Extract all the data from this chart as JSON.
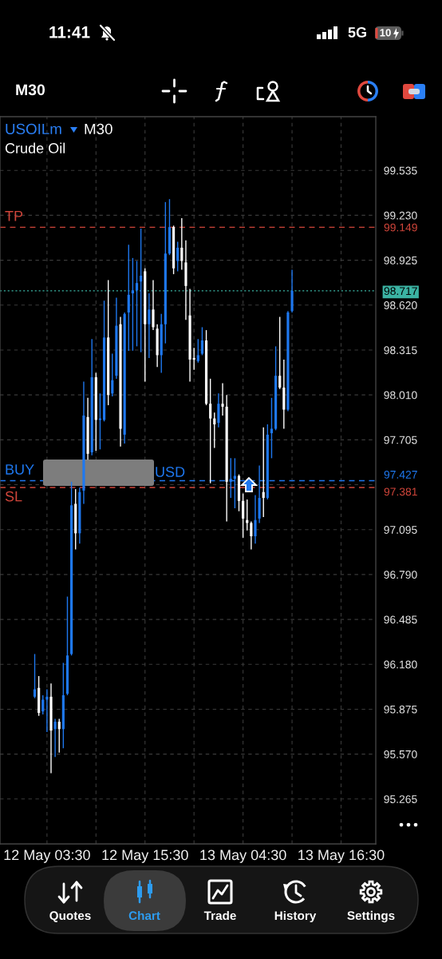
{
  "chart_data": {
    "type": "candlestick",
    "title": "USOILm",
    "subtitle": "Crude Oil",
    "annotations": [
      "11:41",
      "5G",
      "10",
      "M30",
      "M30",
      "USD",
      "Quotes",
      "Chart",
      "Trade",
      "History",
      "Settings",
      {
        "text": "TP",
        "y": 99.149
      },
      {
        "text": "BUY",
        "y": 97.427
      },
      {
        "text": "SL",
        "y": 97.381
      }
    ],
    "categories": [
      null,
      null,
      null,
      "12 May 03:30",
      null,
      null,
      null,
      null,
      null,
      null,
      null,
      null,
      null,
      null,
      null,
      null,
      null,
      null,
      null,
      null,
      null,
      null,
      null,
      null,
      null,
      null,
      null,
      "12 May 15:30",
      null,
      null,
      null,
      null,
      null,
      null,
      null,
      null,
      null,
      null,
      null,
      null,
      null,
      null,
      null,
      null,
      null,
      null,
      null,
      null,
      null,
      null,
      null,
      "13 May 04:30",
      null,
      null,
      null,
      null,
      null,
      null,
      null,
      null,
      null,
      null,
      null,
      null,
      null,
      null,
      null,
      null,
      null,
      null,
      null,
      null,
      null,
      null,
      null,
      "13 May 16:30",
      null,
      null,
      null,
      null,
      null,
      null,
      null,
      null
    ],
    "ohlc": [
      [
        95.96,
        96.25,
        95.95,
        96.01
      ],
      [
        96.02,
        96.1,
        95.83,
        95.85
      ],
      [
        95.86,
        95.97,
        95.84,
        95.94
      ],
      [
        95.94,
        96.01,
        95.72,
        95.96
      ],
      [
        95.96,
        96.05,
        95.44,
        95.73
      ],
      [
        95.74,
        95.81,
        95.55,
        95.79
      ],
      [
        95.79,
        95.81,
        95.58,
        95.74
      ],
      [
        95.74,
        96.19,
        95.61,
        95.97
      ],
      [
        95.98,
        96.64,
        95.97,
        96.24
      ],
      [
        96.25,
        97.42,
        96.24,
        97.26
      ],
      [
        97.27,
        97.37,
        96.96,
        97.07
      ],
      [
        97.07,
        97.38,
        97.0,
        97.35
      ],
      [
        97.36,
        98.1,
        97.27,
        97.87
      ],
      [
        97.86,
        97.99,
        97.57,
        97.61
      ],
      [
        97.62,
        98.39,
        97.6,
        98.13
      ],
      [
        98.13,
        98.16,
        97.63,
        97.84
      ],
      [
        97.84,
        98.02,
        97.64,
        97.85
      ],
      [
        97.84,
        98.65,
        97.83,
        98.4
      ],
      [
        98.4,
        98.79,
        97.94,
        98.01
      ],
      [
        98.02,
        98.29,
        98.0,
        98.11
      ],
      [
        98.14,
        98.67,
        98.12,
        98.48
      ],
      [
        98.49,
        98.54,
        97.66,
        97.78
      ],
      [
        97.74,
        98.57,
        97.68,
        98.56
      ],
      [
        98.57,
        99.03,
        98.31,
        98.69
      ],
      [
        98.7,
        98.94,
        98.31,
        98.72
      ],
      [
        98.72,
        98.92,
        98.34,
        98.77
      ],
      [
        98.78,
        99.14,
        98.3,
        98.82
      ],
      [
        98.85,
        98.87,
        98.1,
        98.49
      ],
      [
        98.49,
        98.7,
        98.26,
        98.59
      ],
      [
        98.59,
        98.79,
        98.45,
        98.47
      ],
      [
        98.46,
        98.49,
        98.2,
        98.28
      ],
      [
        98.28,
        98.56,
        98.16,
        98.49
      ],
      [
        98.49,
        99.32,
        98.36,
        98.97
      ],
      [
        98.97,
        99.34,
        98.96,
        99.15
      ],
      [
        99.15,
        99.16,
        98.83,
        98.87
      ],
      [
        98.92,
        99.05,
        98.85,
        99.01
      ],
      [
        99.01,
        99.21,
        98.86,
        98.92
      ],
      [
        98.91,
        99.06,
        98.52,
        98.75
      ],
      [
        98.55,
        98.73,
        98.1,
        98.25
      ],
      [
        98.26,
        98.33,
        98.18,
        98.25
      ],
      [
        98.24,
        98.39,
        98.23,
        98.28
      ],
      [
        98.29,
        98.47,
        98.28,
        98.38
      ],
      [
        98.38,
        98.45,
        97.94,
        97.95
      ],
      [
        97.95,
        98.12,
        97.41,
        97.85
      ],
      [
        97.85,
        97.89,
        97.65,
        97.81
      ],
      [
        97.82,
        98.02,
        97.79,
        97.95
      ],
      [
        97.95,
        98.09,
        97.87,
        97.93
      ],
      [
        97.93,
        98.01,
        97.15,
        97.42
      ],
      [
        97.42,
        97.58,
        97.31,
        97.44
      ],
      [
        97.44,
        97.58,
        97.24,
        97.46
      ],
      [
        97.46,
        97.47,
        97.22,
        97.29
      ],
      [
        97.29,
        97.34,
        97.04,
        97.17
      ],
      [
        97.16,
        97.3,
        97.09,
        97.14
      ],
      [
        97.14,
        97.15,
        96.96,
        97.05
      ],
      [
        97.05,
        97.33,
        97.0,
        97.16
      ],
      [
        97.17,
        97.53,
        97.14,
        97.31
      ],
      [
        97.35,
        97.79,
        97.18,
        97.31
      ],
      [
        97.31,
        97.81,
        97.3,
        97.74
      ],
      [
        97.75,
        97.99,
        97.58,
        97.78
      ],
      [
        97.78,
        98.34,
        97.77,
        98.14
      ],
      [
        98.14,
        98.54,
        98.05,
        98.06
      ],
      [
        98.06,
        98.25,
        97.78,
        97.91
      ],
      [
        97.91,
        98.58,
        97.9,
        98.57
      ],
      [
        98.58,
        98.86,
        98.57,
        98.717
      ],
      null,
      null,
      null,
      null,
      null,
      null,
      null,
      null,
      null,
      null,
      null,
      null,
      null,
      null,
      null,
      null,
      null,
      null,
      null,
      null
    ],
    "colors": [
      "#1e78f0",
      "#ffffff",
      "#1e78f0",
      "#1e78f0",
      "#ffffff",
      "#1e78f0",
      "#ffffff",
      "#1e78f0",
      "#1e78f0",
      "#1e78f0",
      "#ffffff",
      "#1e78f0",
      "#1e78f0",
      "#ffffff",
      "#1e78f0",
      "#ffffff",
      "#1e78f0",
      "#1e78f0",
      "#ffffff",
      "#1e78f0",
      "#1e78f0",
      "#ffffff",
      "#1e78f0",
      "#1e78f0",
      "#1e78f0",
      "#1e78f0",
      "#1e78f0",
      "#ffffff",
      "#1e78f0",
      "#ffffff",
      "#ffffff",
      "#1e78f0",
      "#1e78f0",
      "#1e78f0",
      "#ffffff",
      "#1e78f0",
      "#ffffff",
      "#ffffff",
      "#ffffff",
      "#ffffff",
      "#1e78f0",
      "#1e78f0",
      "#ffffff",
      "#ffffff",
      "#ffffff",
      "#1e78f0",
      "#ffffff",
      "#ffffff",
      "#1e78f0",
      "#1e78f0",
      "#ffffff",
      "#ffffff",
      "#ffffff",
      "#ffffff",
      "#1e78f0",
      "#1e78f0",
      "#ffffff",
      "#1e78f0",
      "#1e78f0",
      "#1e78f0",
      "#ffffff",
      "#ffffff",
      "#1e78f0",
      "#1e78f0",
      null,
      null,
      null,
      null,
      null,
      null,
      null,
      null,
      null,
      null,
      null,
      null,
      null,
      null,
      null,
      null,
      null,
      null,
      null,
      null
    ],
    "ylim": [
      94.96,
      99.9
    ],
    "yticks": [
      95.265,
      {
        "value": 95.57,
        "label": "95.570"
      },
      95.875,
      {
        "value": 96.18,
        "label": "96.180"
      },
      96.485,
      {
        "value": 96.79,
        "label": "96.790"
      },
      97.095,
      {
        "value": 97.4,
        "label": null
      },
      97.705,
      {
        "value": 98.01,
        "label": "98.010"
      },
      98.315,
      {
        "value": 98.62,
        "label": "98.620"
      },
      98.925,
      {
        "value": 99.23,
        "label": "99.230"
      },
      99.535
    ],
    "ref_lines": [
      {
        "axis": "y",
        "value": 99.149,
        "label": "99.149",
        "color": "#d0453a",
        "line_style": "dashed"
      },
      {
        "axis": "y",
        "value": 98.717,
        "label": "98.717",
        "color": "#3bb3a3",
        "line_style": "dotted"
      },
      {
        "axis": "y",
        "value": 97.427,
        "label": "97.427",
        "color": "#1e78f0",
        "line_style": "dashed"
      },
      {
        "axis": "y",
        "value": 97.381,
        "label": "97.381",
        "color": "#d0453a",
        "line_style": "dashed"
      }
    ],
    "grid": true
  }
}
